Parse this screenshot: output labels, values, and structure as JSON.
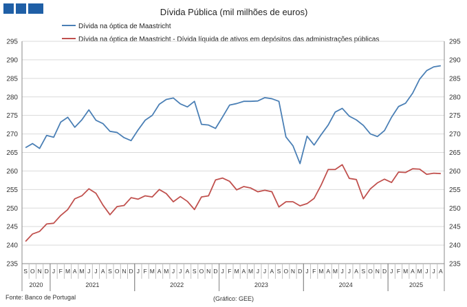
{
  "header": {
    "brand_color": "#1f5fa6"
  },
  "source": "Fonte: Banco de Portugal",
  "credit": "(Gráfico: GEE)",
  "chart_data": {
    "type": "line",
    "title": "Dívida Pública (mil milhões de euros)",
    "xlabel": "",
    "ylabel": "",
    "ylim": [
      235,
      295
    ],
    "yticks": [
      235,
      240,
      245,
      250,
      255,
      260,
      265,
      270,
      275,
      280,
      285,
      290,
      295
    ],
    "grid": true,
    "legend_position": "top",
    "x": [
      "S",
      "O",
      "N",
      "D",
      "J",
      "F",
      "M",
      "A",
      "M",
      "J",
      "J",
      "A",
      "S",
      "O",
      "N",
      "D",
      "J",
      "F",
      "M",
      "A",
      "M",
      "J",
      "J",
      "A",
      "S",
      "O",
      "N",
      "D",
      "J",
      "F",
      "M",
      "A",
      "M",
      "J",
      "J",
      "A",
      "S",
      "O",
      "N",
      "D",
      "J",
      "F",
      "M",
      "A",
      "M",
      "J",
      "J",
      "A",
      "S",
      "O",
      "N",
      "D",
      "J",
      "F",
      "M",
      "A",
      "M",
      "J",
      "J",
      "A"
    ],
    "years": [
      {
        "label": "2020",
        "start": 0,
        "end": 3
      },
      {
        "label": "2021",
        "start": 4,
        "end": 15
      },
      {
        "label": "2022",
        "start": 16,
        "end": 27
      },
      {
        "label": "2023",
        "start": 28,
        "end": 39
      },
      {
        "label": "2024",
        "start": 40,
        "end": 51
      },
      {
        "label": "2025",
        "start": 52,
        "end": 59
      }
    ],
    "series": [
      {
        "name": "Dívida na óptica de Maastricht",
        "color": "#4a7fb5",
        "values": [
          266.3,
          267.4,
          266.1,
          269.6,
          269.1,
          273.2,
          274.5,
          271.8,
          273.8,
          276.5,
          273.7,
          272.8,
          270.7,
          270.4,
          269.0,
          268.2,
          271.1,
          273.7,
          275.0,
          278.0,
          279.3,
          279.7,
          278.1,
          277.3,
          278.8,
          272.6,
          272.4,
          271.5,
          274.6,
          277.8,
          278.2,
          278.8,
          278.8,
          278.9,
          279.8,
          279.5,
          278.8,
          269.2,
          266.8,
          262.0,
          269.4,
          267.0,
          269.8,
          272.4,
          275.9,
          276.9,
          274.8,
          273.8,
          272.3,
          270.0,
          269.3,
          270.9,
          274.5,
          277.4,
          278.3,
          281.0,
          284.8,
          287.1,
          288.1,
          288.4
        ]
      },
      {
        "name": "Dívida na óptica de Maastricht - Dívida líquida de ativos em depósitos das administrações públicas",
        "color": "#c0504d",
        "values": [
          241.0,
          243.0,
          243.7,
          245.7,
          245.9,
          248.0,
          249.6,
          252.5,
          253.3,
          255.2,
          254.0,
          250.8,
          248.2,
          250.4,
          250.7,
          252.8,
          252.4,
          253.3,
          253.0,
          255.0,
          253.9,
          251.7,
          253.1,
          251.8,
          249.6,
          253.0,
          253.3,
          257.6,
          258.1,
          257.2,
          254.9,
          255.8,
          255.4,
          254.4,
          254.8,
          254.4,
          250.3,
          251.7,
          251.7,
          250.6,
          251.2,
          252.6,
          256.2,
          260.4,
          260.4,
          261.7,
          258.0,
          257.7,
          252.5,
          255.2,
          256.8,
          257.8,
          256.9,
          259.7,
          259.6,
          260.6,
          260.5,
          259.1,
          259.4,
          259.3
        ]
      }
    ]
  }
}
